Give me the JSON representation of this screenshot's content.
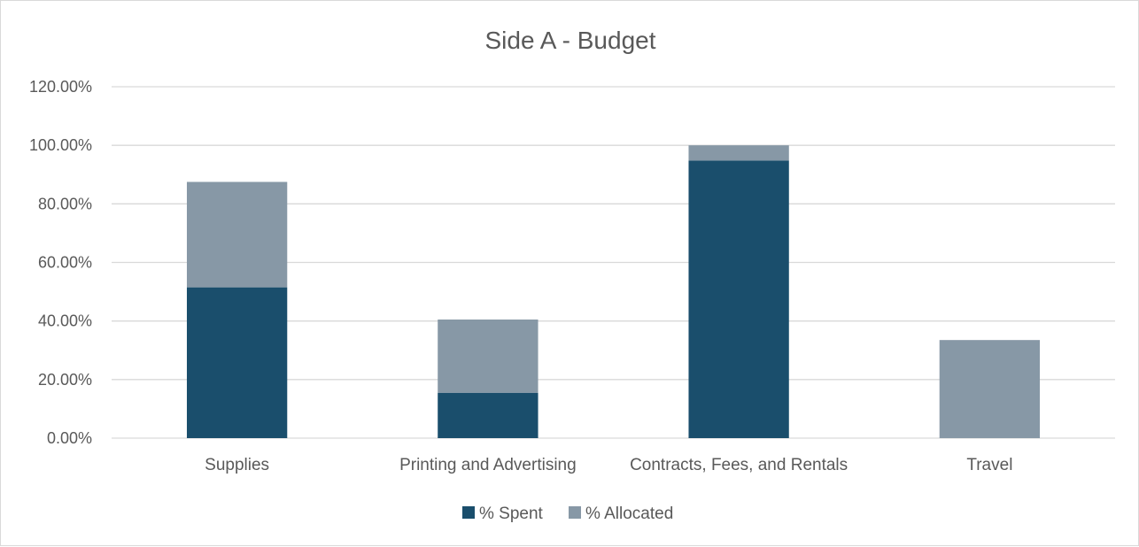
{
  "chart_data": {
    "type": "bar",
    "stacked": true,
    "title": "Side A - Budget",
    "categories": [
      "Supplies",
      "Printing and Advertising",
      "Contracts, Fees, and Rentals",
      "Travel"
    ],
    "series": [
      {
        "name": "% Spent",
        "values": [
          51.5,
          15.5,
          94.8,
          0
        ],
        "color": "#1a4e6c"
      },
      {
        "name": "% Allocated",
        "values": [
          36.0,
          25.0,
          5.2,
          33.5
        ],
        "color": "#8798a6"
      }
    ],
    "yticks": [
      "0.00%",
      "20.00%",
      "40.00%",
      "60.00%",
      "80.00%",
      "100.00%",
      "120.00%"
    ],
    "ylim": [
      0,
      120
    ],
    "grid": true,
    "legend_position": "bottom"
  }
}
